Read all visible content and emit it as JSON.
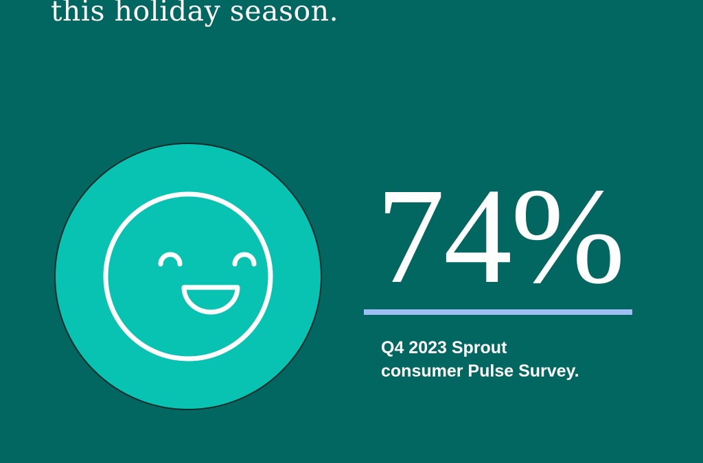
{
  "headline": "this holiday season.",
  "stat": {
    "value": "74%"
  },
  "source": {
    "line1": "Q4 2023 Sprout",
    "line2": "consumer Pulse Survey."
  },
  "icon": "smiling-face-icon",
  "colors": {
    "background": "#026760",
    "circle": "#08c3b2",
    "rule": "#9fc0f5",
    "text": "#ffffff"
  }
}
